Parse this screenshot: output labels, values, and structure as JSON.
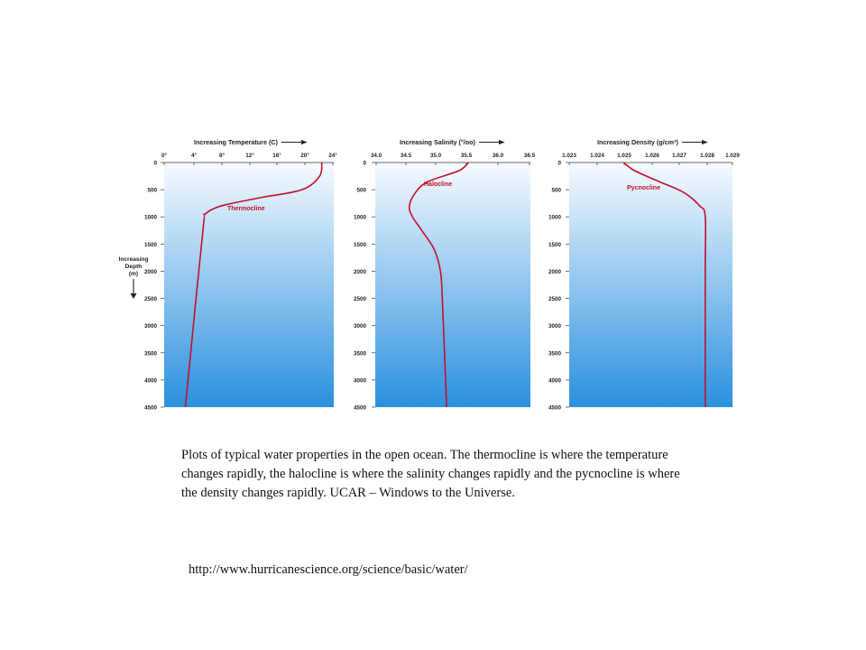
{
  "depth_axis": {
    "label_lines": [
      "Increasing",
      "Depth",
      "(m)"
    ],
    "ticks": [
      "0",
      "500",
      "1000",
      "1500",
      "2000",
      "2500",
      "3000",
      "3500",
      "4000",
      "4500"
    ]
  },
  "chart_data": [
    {
      "type": "line",
      "xlabel": "Increasing Temperature (C)",
      "x_ticks": [
        "0°",
        "4°",
        "8°",
        "12°",
        "16°",
        "20°",
        "24°"
      ],
      "xlim": [
        0,
        24
      ],
      "ylim": [
        4500,
        0
      ],
      "ylabel": "Increasing Depth (m)",
      "annotation": "Thermocline",
      "series": [
        {
          "x": [
            22.3,
            22.0,
            19.5,
            13.5,
            8.0,
            5.8,
            5.6,
            4.5,
            3.0
          ],
          "y": [
            0,
            250,
            500,
            650,
            800,
            950,
            1100,
            2500,
            4500
          ]
        }
      ]
    },
    {
      "type": "line",
      "xlabel": "Increasing Salinity (°/oo)",
      "x_ticks": [
        "34.0",
        "34.5",
        "35.0",
        "35.5",
        "36.0",
        "36.5"
      ],
      "xlim": [
        34.0,
        36.5
      ],
      "ylim": [
        4500,
        0
      ],
      "ylabel": "Increasing Depth (m)",
      "annotation": "Halocline",
      "series": [
        {
          "x": [
            35.5,
            35.35,
            34.85,
            34.65,
            34.55,
            34.6,
            34.75,
            34.95,
            35.05,
            35.08,
            35.15
          ],
          "y": [
            0,
            150,
            350,
            550,
            800,
            1000,
            1250,
            1600,
            2000,
            2500,
            4500
          ]
        }
      ]
    },
    {
      "type": "line",
      "xlabel": "Increasing Density (g/cm³)",
      "x_ticks": [
        "1.023",
        "1.024",
        "1.025",
        "1.026",
        "1.027",
        "1.028",
        "1.029"
      ],
      "xlim": [
        1.023,
        1.029
      ],
      "ylim": [
        4500,
        0
      ],
      "ylabel": "Increasing Depth (m)",
      "annotation": "Pycnocline",
      "series": [
        {
          "x": [
            1.025,
            1.0254,
            1.0263,
            1.0272,
            1.0278,
            1.028,
            1.028,
            1.028
          ],
          "y": [
            0,
            150,
            350,
            550,
            800,
            1000,
            2000,
            4500
          ]
        }
      ]
    }
  ],
  "caption": "Plots of typical water properties in the open ocean. The thermocline is where the temperature changes rapidly, the halocline is where the salinity changes rapidly and the pycnocline is where the density changes rapidly. UCAR – Windows to the Universe.",
  "source_url": "http://www.hurricanescience.org/science/basic/water/",
  "colors": {
    "curve": "#c1102e",
    "water_top": "#f7fbff",
    "water_bottom": "#2a90de"
  }
}
